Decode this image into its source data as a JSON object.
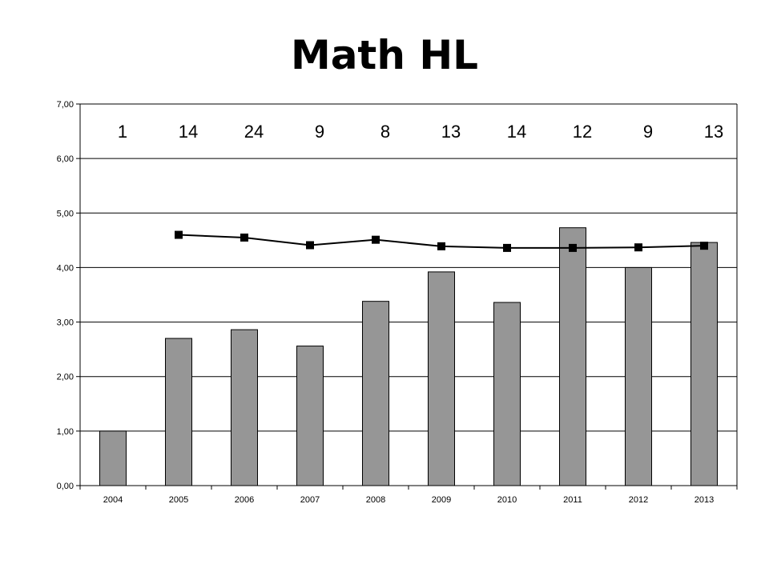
{
  "title": "Math HL",
  "chart_data": {
    "type": "bar",
    "categories": [
      "2004",
      "2005",
      "2006",
      "2007",
      "2008",
      "2009",
      "2010",
      "2011",
      "2012",
      "2013"
    ],
    "series": [
      {
        "type": "bar",
        "values": [
          1.0,
          2.7,
          2.86,
          2.56,
          3.38,
          3.92,
          3.36,
          4.73,
          4.0,
          4.46
        ]
      },
      {
        "type": "line",
        "values": [
          null,
          4.6,
          4.55,
          4.41,
          4.51,
          4.39,
          4.36,
          4.36,
          4.37,
          4.4
        ]
      }
    ],
    "annotations": [
      "1",
      "14",
      "24",
      "9",
      "8",
      "13",
      "14",
      "12",
      "9",
      "13"
    ],
    "yticks": [
      "0,00",
      "1,00",
      "2,00",
      "3,00",
      "4,00",
      "5,00",
      "6,00",
      "7,00"
    ],
    "ylim": [
      0,
      7
    ],
    "grid": true,
    "colors": {
      "bar": "#969696",
      "line": "#000000",
      "grid": "#000000"
    }
  }
}
